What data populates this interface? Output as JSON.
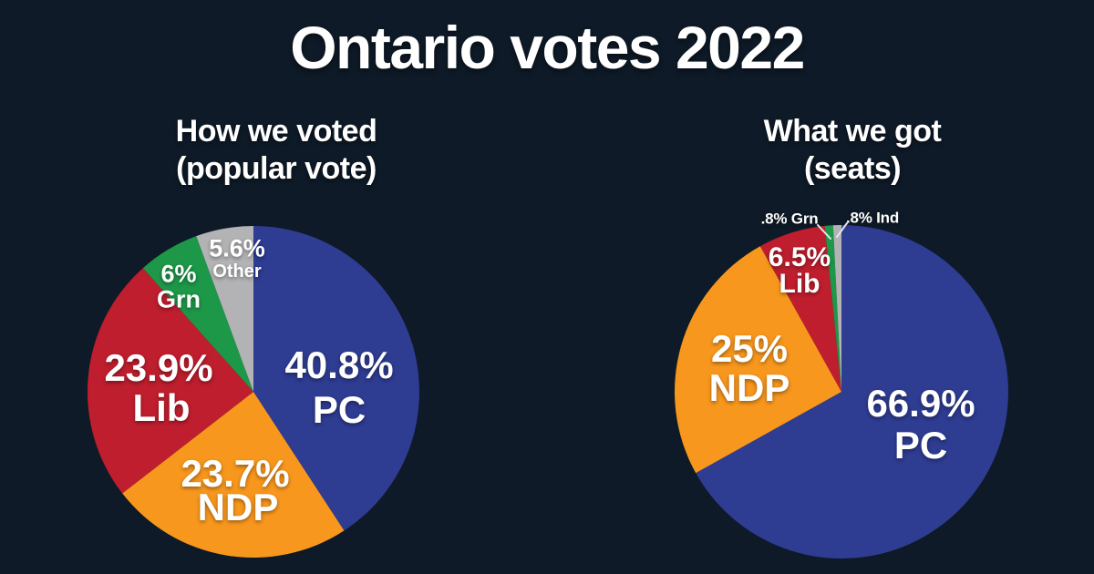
{
  "page": {
    "title": "Ontario votes 2022"
  },
  "colors": {
    "background": "#0e1a27",
    "pc_blue": "#2e3c92",
    "ndp_orange": "#f8971d",
    "lib_red": "#bf1e2e",
    "grn_green": "#1d9748",
    "other_grey": "#b3b3b5",
    "text": "#ffffff"
  },
  "chart_data": [
    {
      "type": "pie",
      "title": "How we voted",
      "subtitle": "(popular vote)",
      "start_angle": 0,
      "direction": "clockwise",
      "slices": [
        {
          "name": "PC",
          "value": 40.8,
          "color": "#2e3c92",
          "label_value": "40.8%",
          "label_name": "PC"
        },
        {
          "name": "NDP",
          "value": 23.7,
          "color": "#f8971d",
          "label_value": "23.7%",
          "label_name": "NDP"
        },
        {
          "name": "Lib",
          "value": 23.9,
          "color": "#bf1e2e",
          "label_value": "23.9%",
          "label_name": "Lib"
        },
        {
          "name": "Grn",
          "value": 6,
          "color": "#1d9748",
          "label_value": "6%",
          "label_name": "Grn"
        },
        {
          "name": "Other",
          "value": 5.6,
          "color": "#b3b3b5",
          "label_value": "5.6%",
          "label_name": "Other"
        }
      ]
    },
    {
      "type": "pie",
      "title": "What we got",
      "subtitle": "(seats)",
      "start_angle": 0,
      "direction": "clockwise",
      "slices": [
        {
          "name": "PC",
          "value": 66.9,
          "color": "#2e3c92",
          "label_value": "66.9%",
          "label_name": "PC"
        },
        {
          "name": "NDP",
          "value": 25,
          "color": "#f8971d",
          "label_value": "25%",
          "label_name": "NDP"
        },
        {
          "name": "Lib",
          "value": 6.5,
          "color": "#bf1e2e",
          "label_value": "6.5%",
          "label_name": "Lib"
        },
        {
          "name": "Grn",
          "value": 0.8,
          "color": "#1d9748",
          "label_value": ".8% Grn",
          "callout": true
        },
        {
          "name": "Ind",
          "value": 0.8,
          "color": "#b3b3b5",
          "label_value": ".8% Ind",
          "callout": true
        }
      ]
    }
  ]
}
